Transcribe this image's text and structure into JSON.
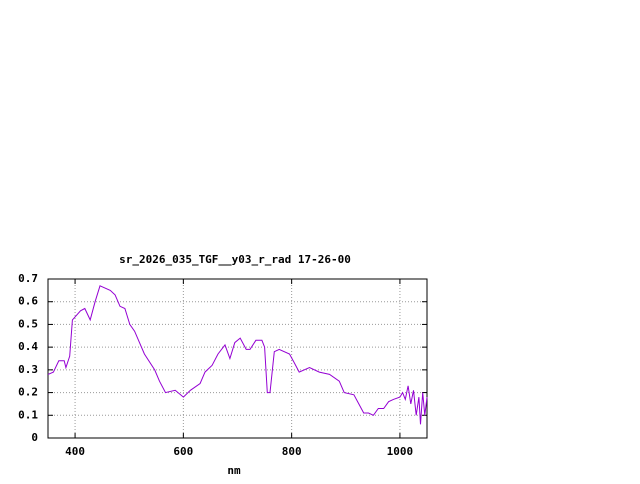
{
  "chart_data": {
    "type": "line",
    "title": "sr_2026_035_TGF__y03_r_rad 17-26-00",
    "x_label": "nm",
    "xlim": [
      350,
      1050
    ],
    "xticks": [
      400,
      600,
      800,
      1000
    ],
    "ylim": [
      0,
      0.7
    ],
    "yticks": [
      0,
      0.1,
      0.2,
      0.3,
      0.4,
      0.5,
      0.6,
      0.7
    ],
    "grid": true,
    "series": [
      {
        "name": "rad",
        "color": "#9400d3",
        "x": [
          350,
          360,
          370,
          380,
          383,
          390,
          395,
          410,
          418,
          428,
          437,
          446,
          465,
          474,
          483,
          492,
          501,
          510,
          528,
          547,
          556,
          567,
          585,
          600,
          613,
          631,
          640,
          653,
          664,
          677,
          686,
          695,
          705,
          716,
          723,
          734,
          745,
          750,
          755,
          760,
          768,
          777,
          796,
          805,
          814,
          833,
          851,
          870,
          888,
          897,
          915,
          924,
          933,
          942,
          951,
          960,
          970,
          979,
          988,
          1000,
          1005,
          1010,
          1015,
          1020,
          1025,
          1030,
          1035,
          1038,
          1042,
          1046,
          1050
        ],
        "values": [
          0.28,
          0.29,
          0.34,
          0.34,
          0.31,
          0.36,
          0.52,
          0.56,
          0.57,
          0.52,
          0.6,
          0.67,
          0.65,
          0.63,
          0.58,
          0.57,
          0.5,
          0.47,
          0.37,
          0.3,
          0.25,
          0.2,
          0.21,
          0.18,
          0.21,
          0.24,
          0.29,
          0.32,
          0.37,
          0.41,
          0.35,
          0.42,
          0.44,
          0.39,
          0.39,
          0.43,
          0.43,
          0.4,
          0.2,
          0.2,
          0.38,
          0.39,
          0.37,
          0.33,
          0.29,
          0.31,
          0.29,
          0.28,
          0.25,
          0.2,
          0.19,
          0.15,
          0.11,
          0.11,
          0.1,
          0.13,
          0.13,
          0.16,
          0.17,
          0.18,
          0.2,
          0.17,
          0.23,
          0.15,
          0.21,
          0.1,
          0.18,
          0.06,
          0.2,
          0.1,
          0.18
        ]
      }
    ]
  }
}
